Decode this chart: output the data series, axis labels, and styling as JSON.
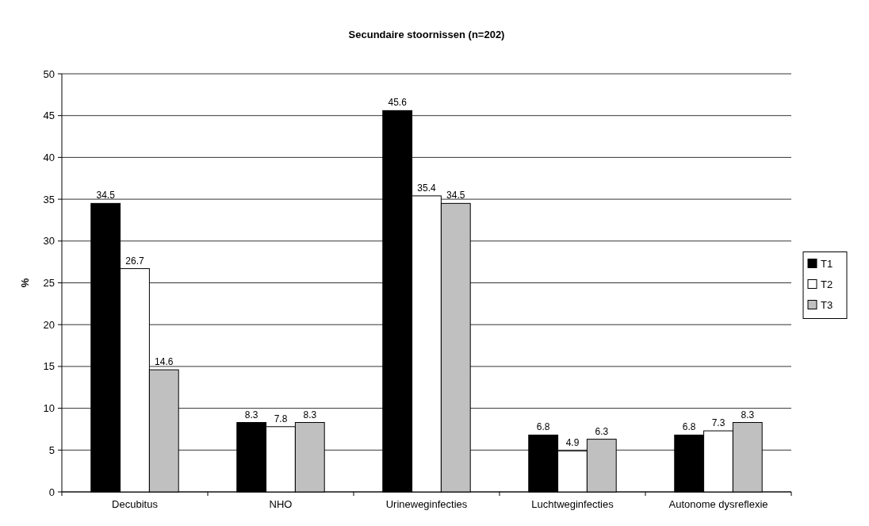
{
  "chart_data": {
    "type": "bar",
    "title": "Secundaire stoornissen (n=202)",
    "ylabel": "%",
    "categories": [
      "Decubitus",
      "NHO",
      "Urineweginfecties",
      "Luchtweginfecties",
      "Autonome dysreflexie"
    ],
    "series": [
      {
        "name": "T1",
        "color": "#000000",
        "values": [
          34.5,
          8.3,
          45.6,
          6.8,
          6.8
        ]
      },
      {
        "name": "T2",
        "color": "#ffffff",
        "values": [
          26.7,
          7.8,
          35.4,
          4.9,
          7.3
        ]
      },
      {
        "name": "T3",
        "color": "#c0c0c0",
        "values": [
          14.6,
          8.3,
          34.5,
          6.3,
          8.3
        ]
      }
    ],
    "ylim": [
      0,
      50
    ],
    "yticks": [
      0,
      5,
      10,
      15,
      20,
      25,
      30,
      35,
      40,
      45,
      50
    ],
    "grid": "y",
    "legend": "right",
    "data_labels": true
  }
}
